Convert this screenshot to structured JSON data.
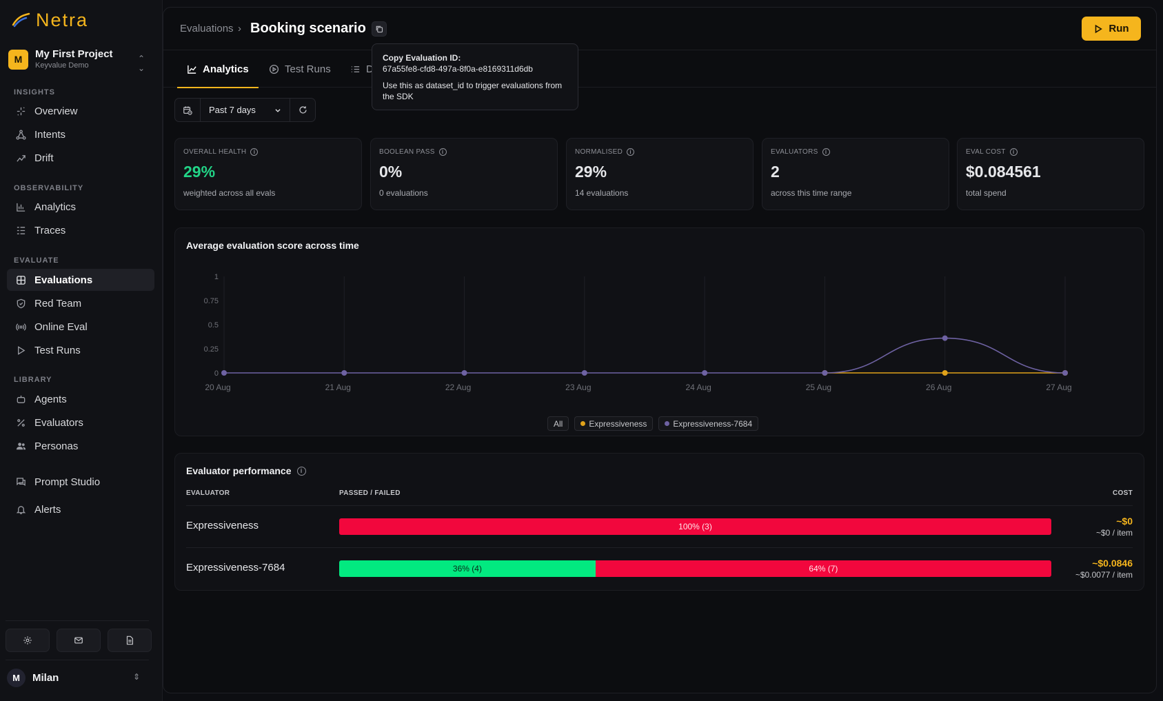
{
  "app": {
    "name": "Netra"
  },
  "project": {
    "avatar": "M",
    "name": "My First Project",
    "subtitle": "Keyvalue Demo"
  },
  "sidebar": {
    "sections": [
      {
        "label": "INSIGHTS",
        "items": [
          {
            "label": "Overview",
            "icon": "sparkles-icon"
          },
          {
            "label": "Intents",
            "icon": "network-icon"
          },
          {
            "label": "Drift",
            "icon": "trend-icon"
          }
        ]
      },
      {
        "label": "OBSERVABILITY",
        "items": [
          {
            "label": "Analytics",
            "icon": "bar-chart-icon"
          },
          {
            "label": "Traces",
            "icon": "list-tree-icon"
          }
        ]
      },
      {
        "label": "EVALUATE",
        "items": [
          {
            "label": "Evaluations",
            "icon": "grid-plus-icon",
            "active": true
          },
          {
            "label": "Red Team",
            "icon": "shield-icon"
          },
          {
            "label": "Online Eval",
            "icon": "radio-icon"
          },
          {
            "label": "Test Runs",
            "icon": "play-icon"
          }
        ]
      },
      {
        "label": "LIBRARY",
        "items": [
          {
            "label": "Agents",
            "icon": "bot-icon"
          },
          {
            "label": "Evaluators",
            "icon": "percent-icon"
          },
          {
            "label": "Personas",
            "icon": "users-icon"
          }
        ]
      }
    ],
    "extra": [
      {
        "label": "Prompt Studio",
        "icon": "messages-icon"
      },
      {
        "label": "Alerts",
        "icon": "bell-icon"
      }
    ],
    "bottom_buttons": [
      "gear-icon",
      "mail-icon",
      "document-icon"
    ],
    "user": {
      "avatar": "M",
      "name": "Milan"
    }
  },
  "header": {
    "breadcrumb": "Evaluations",
    "title": "Booking scenario",
    "run_label": "Run"
  },
  "tabs": [
    {
      "label": "Analytics",
      "active": true
    },
    {
      "label": "Test Runs"
    },
    {
      "label": "D"
    }
  ],
  "tooltip": {
    "title": "Copy Evaluation ID:",
    "id": "67a55fe8-cfd8-497a-8f0a-e8169311d6db",
    "desc": "Use this as dataset_id to trigger evaluations from the SDK"
  },
  "filters": {
    "range": "Past 7 days"
  },
  "metrics": [
    {
      "label": "OVERALL HEALTH",
      "value": "29%",
      "sub": "weighted across all evals",
      "accent": "#22d487"
    },
    {
      "label": "BOOLEAN PASS",
      "value": "0%",
      "sub": "0 evaluations"
    },
    {
      "label": "NORMALISED",
      "value": "29%",
      "sub": "14 evaluations"
    },
    {
      "label": "EVALUATORS",
      "value": "2",
      "sub": "across this time range"
    },
    {
      "label": "EVAL COST",
      "value": "$0.084561",
      "sub": "total spend"
    }
  ],
  "chart_data": {
    "type": "line",
    "title": "Average evaluation score across time",
    "x": [
      "20 Aug",
      "21 Aug",
      "22 Aug",
      "23 Aug",
      "24 Aug",
      "25 Aug",
      "26 Aug",
      "27 Aug"
    ],
    "y_ticks": [
      "0",
      "0.25",
      "0.5",
      "0.75",
      "1"
    ],
    "ylim": [
      0,
      1
    ],
    "series": [
      {
        "name": "Expressiveness",
        "color": "#e0a21a",
        "values": [
          null,
          null,
          null,
          null,
          null,
          0,
          0,
          0
        ]
      },
      {
        "name": "Expressiveness-7684",
        "color": "#6e62a3",
        "values": [
          0,
          0,
          0,
          0,
          0,
          0,
          0.36,
          0
        ]
      }
    ],
    "legend": [
      "All",
      "Expressiveness",
      "Expressiveness-7684"
    ],
    "grid": true
  },
  "performance": {
    "title": "Evaluator performance",
    "headers": {
      "evaluator": "EVALUATOR",
      "passed_failed": "PASSED / FAILED",
      "cost": "COST"
    },
    "rows": [
      {
        "name": "Expressiveness",
        "pass_fraction": 0,
        "pass_label": "",
        "fail_label": "100% (3)",
        "cost": "~$0",
        "cost_per_item": "~$0 / item"
      },
      {
        "name": "Expressiveness-7684",
        "pass_fraction": 0.36,
        "pass_label": "36% (4)",
        "fail_label": "64% (7)",
        "cost": "~$0.0846",
        "cost_per_item": "~$0.0077 / item"
      }
    ]
  },
  "colors": {
    "accent": "#f5b51d",
    "pass": "#02e980",
    "fail": "#f2073d"
  }
}
